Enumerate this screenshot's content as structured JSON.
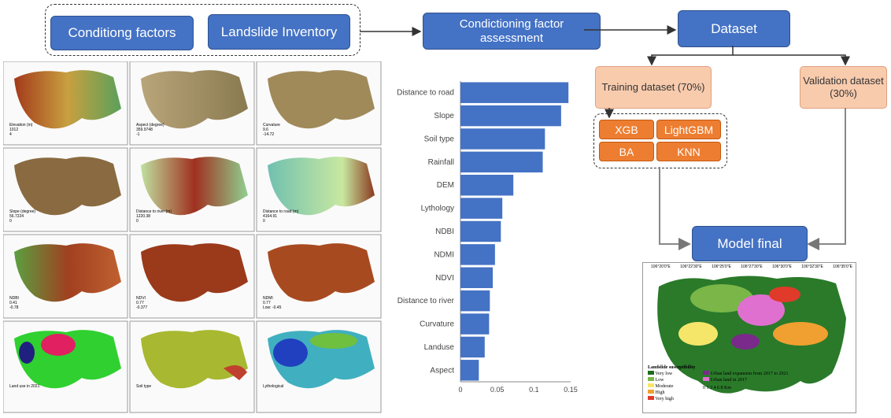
{
  "flow": {
    "conditioning_factors": "Conditiong factors",
    "landslide_inventory": "Landslide Inventory",
    "assessment": "Condictioning factor assessment",
    "dataset": "Dataset",
    "training": "Training dataset (70%)",
    "validation": "Validation dataset (30%)",
    "model_final": "Model final"
  },
  "models": [
    "XGB",
    "LightGBM",
    "BA",
    "KNN"
  ],
  "chart_data": {
    "type": "bar",
    "orientation": "horizontal",
    "categories": [
      "Distance to road",
      "Slope",
      "Soil type",
      "Rainfall",
      "DEM",
      "Lythology",
      "NDBI",
      "NDMI",
      "NDVI",
      "Distance to river",
      "Curvature",
      "Landuse",
      "Aspect"
    ],
    "values": [
      0.147,
      0.137,
      0.115,
      0.112,
      0.072,
      0.057,
      0.055,
      0.047,
      0.044,
      0.04,
      0.039,
      0.033,
      0.025
    ],
    "xticks": [
      "0",
      "0.05",
      "0.1",
      "0.15"
    ],
    "xlim": [
      0,
      0.15
    ],
    "bar_color": "#4472c4"
  },
  "final_map": {
    "legend_title": "Landslide susceptibility",
    "classes": [
      {
        "label": "Very low",
        "color": "#1e6b1e"
      },
      {
        "label": "Low",
        "color": "#7ab648"
      },
      {
        "label": "Moderate",
        "color": "#f5e66a"
      },
      {
        "label": "High",
        "color": "#f0a030"
      },
      {
        "label": "Very high",
        "color": "#e03a2a"
      }
    ],
    "urban": [
      {
        "label": "Urban land expansion from 2017 to 2021",
        "color": "#7a2a8a"
      },
      {
        "label": "Urban land in 2017",
        "color": "#e070d0"
      }
    ],
    "top_ticks": [
      "106°20'0\"E",
      "106°22'30\"E",
      "106°25'0\"E",
      "106°27'30\"E",
      "106°30'0\"E",
      "106°32'30\"E",
      "106°35'0\"E"
    ],
    "scale_label": "0 1 2   4    6    8 Km"
  },
  "map_labels": [
    {
      "title": "Elevation (m)",
      "v1": "1012",
      "v2": "4"
    },
    {
      "title": "Aspect (degree)",
      "v1": "359.9748",
      "v2": "-1"
    },
    {
      "title": "Curvature",
      "v1": "9.6",
      "v2": "-14.72"
    },
    {
      "title": "Slope (degree)",
      "v1": "56.7224",
      "v2": "0"
    },
    {
      "title": "Distance to river (m)",
      "v1": "1220.38",
      "v2": "0"
    },
    {
      "title": "Distance to road (m)",
      "v1": "4164.91",
      "v2": "0"
    },
    {
      "title": "NDBI",
      "v1": "0.41",
      "v2": "-0.78"
    },
    {
      "title": "NDVI",
      "v1": "0.77",
      "v2": "-0.377"
    },
    {
      "title": "NDMI",
      "v1": "0.77",
      "v2": "Low: -0.45"
    },
    {
      "title": "Land use in 2021",
      "v1": "",
      "v2": ""
    },
    {
      "title": "Soil type",
      "v1": "",
      "v2": ""
    },
    {
      "title": "Lythological",
      "v1": "",
      "v2": ""
    }
  ]
}
